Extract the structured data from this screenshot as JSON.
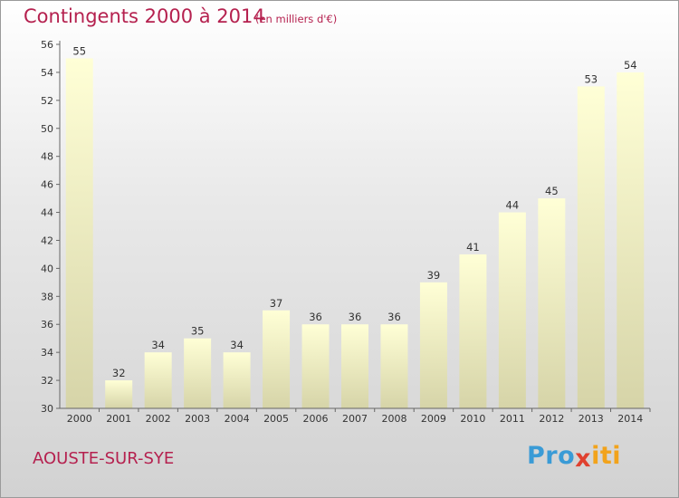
{
  "header": {
    "title": "Contingents 2000 à 2014",
    "unit_note": "(en milliers d'€)"
  },
  "footer": {
    "commune": "AOUSTE-SUR-SYE",
    "logo_left": "Pro",
    "logo_mid": "x",
    "logo_right": "iti"
  },
  "colors": {
    "accent": "#b5214f",
    "bar_top": "#ffffd6",
    "bar_bottom": "#d6d4a8",
    "logo_p": "#3a9bd6",
    "logo_x": "#e0412f",
    "logo_i": "#f2a31b"
  },
  "chart_data": {
    "type": "bar",
    "title": "Contingents 2000 à 2014",
    "subtitle": "(en milliers d'€)",
    "categories": [
      "2000",
      "2001",
      "2002",
      "2003",
      "2004",
      "2005",
      "2006",
      "2007",
      "2008",
      "2009",
      "2010",
      "2011",
      "2012",
      "2013",
      "2014"
    ],
    "values": [
      55,
      32,
      34,
      35,
      34,
      37,
      36,
      36,
      36,
      39,
      41,
      44,
      45,
      53,
      54
    ],
    "ylim": [
      30,
      56
    ],
    "ytick_step": 2,
    "grid": false,
    "data_labels": true
  }
}
